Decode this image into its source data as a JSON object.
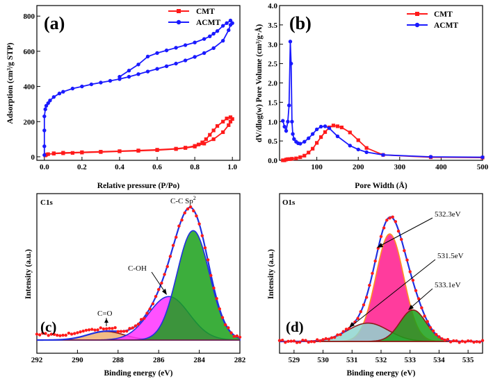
{
  "chart_data": [
    {
      "id": "a",
      "type": "line",
      "panel_label": "(a)",
      "xlabel": "Relative pressure (P/Po)",
      "ylabel": "Adsorption (cm³/g STP)",
      "xlim": [
        -0.04,
        1.04
      ],
      "ylim": [
        -20,
        860
      ],
      "xticks": [
        0.0,
        0.2,
        0.4,
        0.6,
        0.8,
        1.0
      ],
      "xtick_labels": [
        "0.0",
        "0.2",
        "0.4",
        "0.6",
        "0.8",
        "1.0"
      ],
      "yticks": [
        0,
        200,
        400,
        600,
        800
      ],
      "ytick_labels": [
        "0",
        "200",
        "400",
        "600",
        "800"
      ],
      "legend": [
        "CMT",
        "ACMT"
      ],
      "legend_position": "top-right",
      "series": [
        {
          "name": "CMT",
          "color": "#ff1a1a",
          "marker": "square",
          "x": [
            0.005,
            0.01,
            0.02,
            0.05,
            0.1,
            0.15,
            0.2,
            0.3,
            0.4,
            0.5,
            0.6,
            0.7,
            0.75,
            0.8,
            0.85,
            0.9,
            0.95,
            0.98,
            0.99,
            1.0,
            0.99,
            0.97,
            0.95,
            0.92,
            0.9,
            0.88,
            0.86,
            0.84,
            0.82,
            0.8,
            0.75,
            0.7,
            0.6,
            0.5,
            0.4,
            0.3,
            0.2,
            0.1,
            0.05
          ],
          "y": [
            8,
            12,
            15,
            18,
            20,
            22,
            24,
            27,
            31,
            34,
            38,
            44,
            50,
            58,
            75,
            100,
            140,
            180,
            200,
            215,
            225,
            218,
            200,
            175,
            150,
            125,
            100,
            82,
            70,
            62,
            52,
            46,
            40,
            36,
            32,
            29,
            26,
            23,
            20
          ]
        },
        {
          "name": "ACMT",
          "color": "#1a1aff",
          "marker": "circle",
          "x": [
            0.0,
            0.0,
            0.0,
            0.0,
            0.005,
            0.01,
            0.02,
            0.03,
            0.05,
            0.08,
            0.1,
            0.15,
            0.2,
            0.25,
            0.3,
            0.35,
            0.4,
            0.45,
            0.5,
            0.55,
            0.6,
            0.65,
            0.7,
            0.75,
            0.8,
            0.85,
            0.9,
            0.95,
            0.98,
            0.99,
            1.0,
            0.99,
            0.97,
            0.95,
            0.92,
            0.9,
            0.88,
            0.85,
            0.8,
            0.75,
            0.7,
            0.65,
            0.6,
            0.55,
            0.5,
            0.45,
            0.4
          ],
          "y": [
            10,
            60,
            150,
            230,
            270,
            290,
            305,
            320,
            340,
            360,
            370,
            388,
            400,
            412,
            422,
            432,
            442,
            455,
            470,
            485,
            500,
            515,
            530,
            548,
            568,
            590,
            618,
            660,
            720,
            750,
            760,
            775,
            760,
            745,
            715,
            700,
            685,
            670,
            650,
            635,
            620,
            605,
            590,
            570,
            525,
            490,
            455
          ]
        }
      ]
    },
    {
      "id": "b",
      "type": "line",
      "panel_label": "(b)",
      "xlabel": "Pore Width (Å)",
      "ylabel": "dV/dlog(w) Pore Volume (cm³/g·Å)",
      "xlim": [
        10,
        500
      ],
      "ylim": [
        0.0,
        4.0
      ],
      "xticks": [
        100,
        200,
        300,
        400,
        500
      ],
      "xtick_labels": [
        "100",
        "200",
        "300",
        "400",
        "500"
      ],
      "yticks": [
        0.0,
        0.5,
        1.0,
        1.5,
        2.0,
        2.5,
        3.0,
        3.5,
        4.0
      ],
      "ytick_labels": [
        "0.0",
        "0.5",
        "1.0",
        "1.5",
        "2.0",
        "2.5",
        "3.0",
        "3.5",
        "4.0"
      ],
      "legend": [
        "CMT",
        "ACMT"
      ],
      "legend_position": "top-right",
      "series": [
        {
          "name": "CMT",
          "color": "#ff1a1a",
          "marker": "square",
          "x": [
            18,
            22,
            26,
            30,
            35,
            40,
            50,
            60,
            70,
            80,
            90,
            100,
            110,
            120,
            130,
            140,
            150,
            160,
            180,
            200,
            220,
            260,
            375,
            500
          ],
          "y": [
            0.0,
            0.0,
            0.02,
            0.03,
            0.03,
            0.04,
            0.05,
            0.08,
            0.12,
            0.2,
            0.3,
            0.45,
            0.6,
            0.73,
            0.85,
            0.9,
            0.88,
            0.85,
            0.72,
            0.52,
            0.32,
            0.14,
            0.08,
            0.07
          ]
        },
        {
          "name": "ACMT",
          "color": "#1a1aff",
          "marker": "circle",
          "x": [
            18,
            22,
            26,
            30,
            33,
            36,
            38,
            40,
            42,
            45,
            50,
            55,
            60,
            70,
            80,
            90,
            100,
            110,
            120,
            130,
            150,
            180,
            200,
            220,
            260,
            375,
            500
          ],
          "y": [
            1.02,
            0.87,
            0.76,
            1.0,
            1.42,
            3.07,
            2.5,
            1.0,
            0.68,
            0.55,
            0.48,
            0.44,
            0.43,
            0.48,
            0.57,
            0.68,
            0.8,
            0.87,
            0.88,
            0.83,
            0.62,
            0.38,
            0.28,
            0.21,
            0.14,
            0.09,
            0.08
          ]
        }
      ]
    },
    {
      "id": "c",
      "type": "area",
      "panel_label": "(c)",
      "corner_label": "C1s",
      "xlabel": "Binding energy (eV)",
      "ylabel": "Intensity (a.u.)",
      "xlim": [
        292,
        282
      ],
      "reversed_x": true,
      "xticks": [
        292,
        290,
        288,
        286,
        284,
        282
      ],
      "xtick_labels": [
        "292",
        "290",
        "288",
        "286",
        "284",
        "282"
      ],
      "peaks": [
        {
          "name": "C=O",
          "center": 288.6,
          "sigma": 0.9,
          "amplitude": 0.065,
          "fill": "#f0b070",
          "edge": "#8b1a1a"
        },
        {
          "name": "C-OH",
          "center": 285.5,
          "sigma": 1.0,
          "amplitude": 0.33,
          "fill": "#ff33ff",
          "edge": "#2030e0"
        },
        {
          "name": "C-C Sp²",
          "center": 284.3,
          "sigma": 0.8,
          "amplitude": 0.83,
          "fill": "#1aa01a",
          "edge": "#2030e0"
        }
      ],
      "annotations": [
        {
          "text": "C-C Sp²",
          "label": "C-C Sp",
          "sup": "2"
        },
        {
          "text": "C-OH"
        },
        {
          "text": "C=O"
        }
      ]
    },
    {
      "id": "d",
      "type": "area",
      "panel_label": "(d)",
      "corner_label": "O1s",
      "xlabel": "Binding energy (eV)",
      "ylabel": "Intensity (a.u.)",
      "xlim": [
        528.5,
        535.5
      ],
      "reversed_x": false,
      "xticks": [
        529,
        530,
        531,
        532,
        533,
        534,
        535
      ],
      "xtick_labels": [
        "529",
        "530",
        "531",
        "532",
        "533",
        "534",
        "535"
      ],
      "peaks": [
        {
          "name": "532.3eV",
          "center": 532.3,
          "sigma": 0.48,
          "amplitude": 0.82,
          "fill": "#ff1a8c",
          "edge": "#ff9020"
        },
        {
          "name": "531.5eV",
          "center": 531.55,
          "sigma": 0.7,
          "amplitude": 0.14,
          "fill": "#8fd6d0",
          "edge": "#8b1a1a"
        },
        {
          "name": "533.1eV",
          "center": 533.1,
          "sigma": 0.45,
          "amplitude": 0.24,
          "fill": "#1aa01a",
          "edge": "#8b1a1a"
        }
      ],
      "annotations": [
        {
          "text": "532.3eV"
        },
        {
          "text": "531.5eV"
        },
        {
          "text": "533.1eV"
        }
      ]
    }
  ]
}
